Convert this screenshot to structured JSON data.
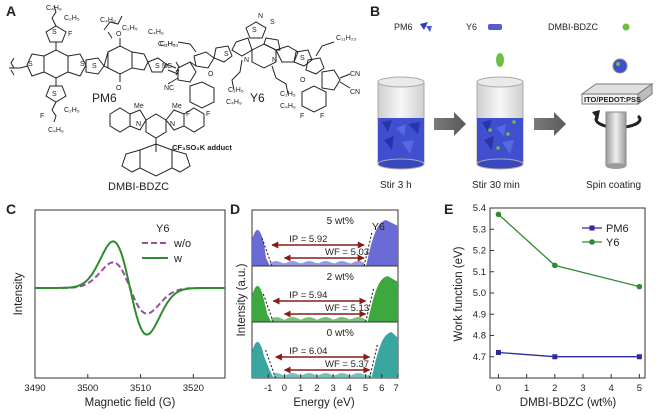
{
  "panels": {
    "A": {
      "label": "A",
      "pm6_name": "PM6",
      "y6_name": "Y6",
      "dmbi_name": "DMBI-BDZC",
      "adduct": "CF₃SO₃K adduct",
      "atoms": {
        "c4h9": "C₄H₉",
        "c2h5": "C₂H₅",
        "f": "F",
        "s": "S",
        "o": "O",
        "n": "N",
        "me": "Me",
        "cn": "CN",
        "nc": "NC",
        "c11h23": "C₁₁H₂₃"
      }
    },
    "B": {
      "label": "B",
      "legend_pm6": "PM6",
      "legend_y6": "Y6",
      "legend_dmbi": "DMBI-BDZC",
      "step1": "Stir 3 h",
      "step2": "Stir 30 min",
      "step3": "Spin coating",
      "substrate": "ITO/PEDOT:PSS"
    },
    "C": {
      "label": "C"
    },
    "D": {
      "label": "D"
    },
    "E": {
      "label": "E"
    }
  },
  "chart_data": [
    {
      "panel": "C",
      "type": "line",
      "title": "Y6",
      "xlabel": "Magnetic field (G)",
      "ylabel": "Intensity",
      "xlim": [
        3490,
        3526
      ],
      "xticks": [
        3490,
        3500,
        3510,
        3520
      ],
      "yticks_shown": false,
      "series": [
        {
          "name": "w/o",
          "style": "dashed",
          "color": "#9b4f9b",
          "amplitude": 0.55
        },
        {
          "name": "w",
          "style": "solid",
          "color": "#2e8b2e",
          "amplitude": 1.0
        }
      ],
      "signal_center": 3508,
      "signal_width": 3.2
    },
    {
      "panel": "D",
      "type": "area",
      "title": "Y6",
      "xlabel": "Energy (eV)",
      "ylabel": "Intensity (a.u.)",
      "xlim": [
        -2,
        7
      ],
      "xticks": [
        -1,
        0,
        1,
        2,
        3,
        4,
        5,
        6,
        7
      ],
      "rows": [
        {
          "label": "5 wt%",
          "ip_text": "IP = 5.92",
          "wf_text": "WF = 5.03",
          "left_edge": -0.89,
          "right_edge": 5.03,
          "color": "#6b6bd6"
        },
        {
          "label": "2 wt%",
          "ip_text": "IP = 5.94",
          "wf_text": "WF = 5.13",
          "left_edge": -0.81,
          "right_edge": 5.13,
          "color": "#3da83d"
        },
        {
          "label": "0 wt%",
          "ip_text": "IP = 6.04",
          "wf_text": "WF = 5.37",
          "left_edge": -0.67,
          "right_edge": 5.37,
          "color": "#3aa6a0"
        }
      ]
    },
    {
      "panel": "E",
      "type": "line",
      "xlabel": "DMBI-BDZC (wt%)",
      "ylabel": "Work function (eV)",
      "xlim": [
        -0.3,
        5.2
      ],
      "ylim": [
        4.6,
        5.4
      ],
      "xticks": [
        0,
        1,
        2,
        3,
        4,
        5
      ],
      "yticks": [
        4.7,
        4.8,
        4.9,
        5.0,
        5.1,
        5.2,
        5.3,
        5.4
      ],
      "legend": "top-right",
      "series": [
        {
          "name": "PM6",
          "x": [
            0,
            2,
            5
          ],
          "y": [
            4.72,
            4.7,
            4.7
          ],
          "color": "#2b2b9c",
          "marker": "square"
        },
        {
          "name": "Y6",
          "x": [
            0,
            2,
            5
          ],
          "y": [
            5.37,
            5.13,
            5.03
          ],
          "color": "#2e8b2e",
          "marker": "circle"
        }
      ]
    }
  ]
}
